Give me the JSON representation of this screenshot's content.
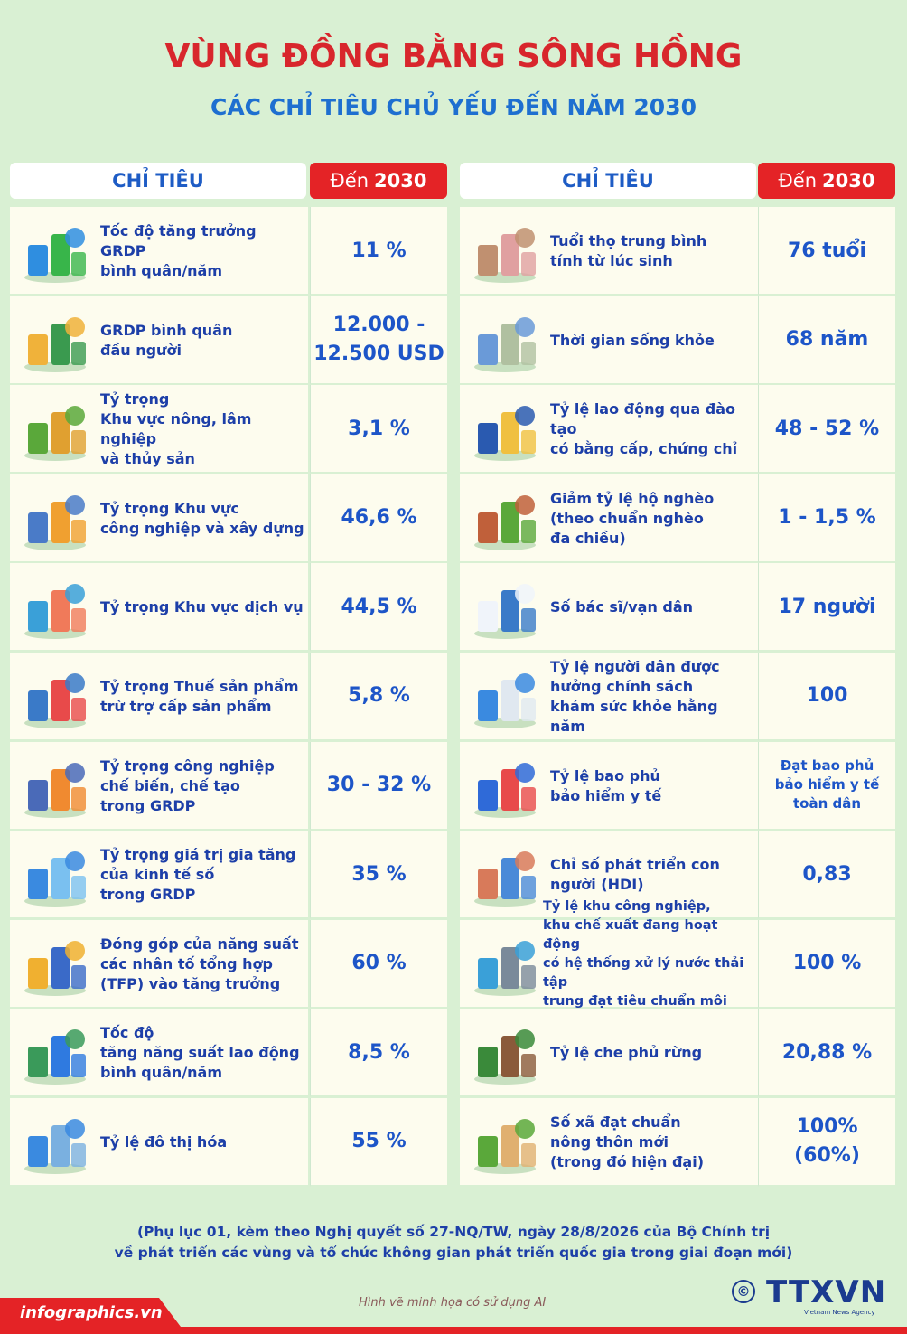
{
  "title": "VÙNG ĐỒNG BẰNG SÔNG HỒNG",
  "subtitle": "CÁC CHỈ TIÊU CHỦ YẾU ĐẾN NĂM 2030",
  "header": {
    "label": "CHỈ TIÊU",
    "year_prefix": "Đến",
    "year": "2030"
  },
  "left": [
    {
      "icon": "growth-chart-icon",
      "label": "Tốc độ tăng trưởng GRDP\nbình quân/năm",
      "value": "11 %"
    },
    {
      "icon": "family-money-icon",
      "label": "GRDP bình quân\nđầu người",
      "value_lines": [
        "12.000 -",
        "12.500 USD"
      ]
    },
    {
      "icon": "agriculture-icon",
      "label": "Tỷ trọng\nKhu vực nông, lâm nghiệp\nvà thủy sản",
      "value": "3,1 %"
    },
    {
      "icon": "industry-construction-icon",
      "label": "Tỷ trọng Khu vực\ncông nghiệp và xây dựng",
      "value": "46,6 %"
    },
    {
      "icon": "services-icon",
      "label": "Tỷ trọng Khu vực dịch vụ",
      "value": "44,5 %"
    },
    {
      "icon": "tax-calculator-icon",
      "label": "Tỷ trọng Thuế sản phẩm\ntrừ trợ cấp sản phẩm",
      "value": "5,8 %"
    },
    {
      "icon": "factory-robot-icon",
      "label": "Tỷ trọng công nghiệp\nchế biến, chế tạo\ntrong GRDP",
      "value": "30 - 32 %"
    },
    {
      "icon": "digital-economy-icon",
      "label": "Tỷ trọng giá trị gia tăng\ncủa kinh tế số\ntrong GRDP",
      "value": "35 %"
    },
    {
      "icon": "productivity-coins-icon",
      "label": "Đóng góp của năng suất\ncác nhân tố tổng hợp\n(TFP) vào tăng trưởng",
      "value": "60 %"
    },
    {
      "icon": "labor-productivity-icon",
      "label": "Tốc độ\ntăng năng suất lao động\nbình quân/năm",
      "value": "8,5 %"
    },
    {
      "icon": "urban-buildings-icon",
      "label": "Tỷ lệ đô thị hóa",
      "value": "55 %"
    }
  ],
  "right": [
    {
      "icon": "elderly-couple-icon",
      "label": "Tuổi thọ trung bình\ntính từ lúc sinh",
      "value": "76 tuổi"
    },
    {
      "icon": "healthy-elderly-icon",
      "label": "Thời gian sống khỏe",
      "value": "68 năm"
    },
    {
      "icon": "trained-workers-icon",
      "label": "Tỷ lệ lao động qua đào tạo\ncó bằng cấp, chứng chỉ",
      "value": "48 - 52 %"
    },
    {
      "icon": "rural-house-icon",
      "label": "Giảm tỷ lệ hộ nghèo\n(theo chuẩn nghèo\nđa chiều)",
      "value": "1 - 1,5 %"
    },
    {
      "icon": "doctors-icon",
      "label": "Số bác sĩ/vạn dân",
      "value": "17 người"
    },
    {
      "icon": "health-checkup-icon",
      "label": "Tỷ lệ người dân được\nhưởng chính sách\nkhám sức khỏe hằng năm",
      "value": "100"
    },
    {
      "icon": "health-insurance-icon",
      "label": "Tỷ lệ bao phủ\nbảo hiểm y tế",
      "value": "Đạt bao phủ\nbảo hiểm y tế\ntoàn dân",
      "small": true
    },
    {
      "icon": "family-hdi-icon",
      "label": "Chỉ số phát triển con\nngười (HDI)",
      "value": "0,83"
    },
    {
      "icon": "water-treatment-icon",
      "label": "Tỷ lệ khu công nghiệp,\nkhu chế xuất đang hoạt động\ncó hệ thống xử lý nước thải tập\ntrung đạt tiêu chuẩn môi trường",
      "value": "100 %",
      "tight": true
    },
    {
      "icon": "forest-icon",
      "label": "Tỷ lệ che phủ rừng",
      "value": "20,88 %"
    },
    {
      "icon": "new-rural-village-icon",
      "label": "Số xã đạt chuẩn\nnông thôn mới\n(trong đó hiện đại)",
      "value_lines": [
        "100%",
        "(60%)"
      ]
    }
  ],
  "footnote": "(Phụ lục 01, kèm theo Nghị quyết số 27-NQ/TW, ngày 28/8/2026 của Bộ Chính trị\nvề phát triển các vùng và tổ chức không gian phát triển quốc gia trong giai đoạn mới)",
  "ai_note": "Hình vẽ minh họa có sử dụng AI",
  "site": "infographics.vn",
  "logo": {
    "copyright": "©",
    "name": "TTXVN",
    "tagline": "Vietnam News Agency"
  },
  "colors": {
    "background": "#d9f0d3",
    "title_red": "#d8262c",
    "blue": "#1d55c8",
    "header_red": "#e42326",
    "cell": "#fdfcee"
  }
}
